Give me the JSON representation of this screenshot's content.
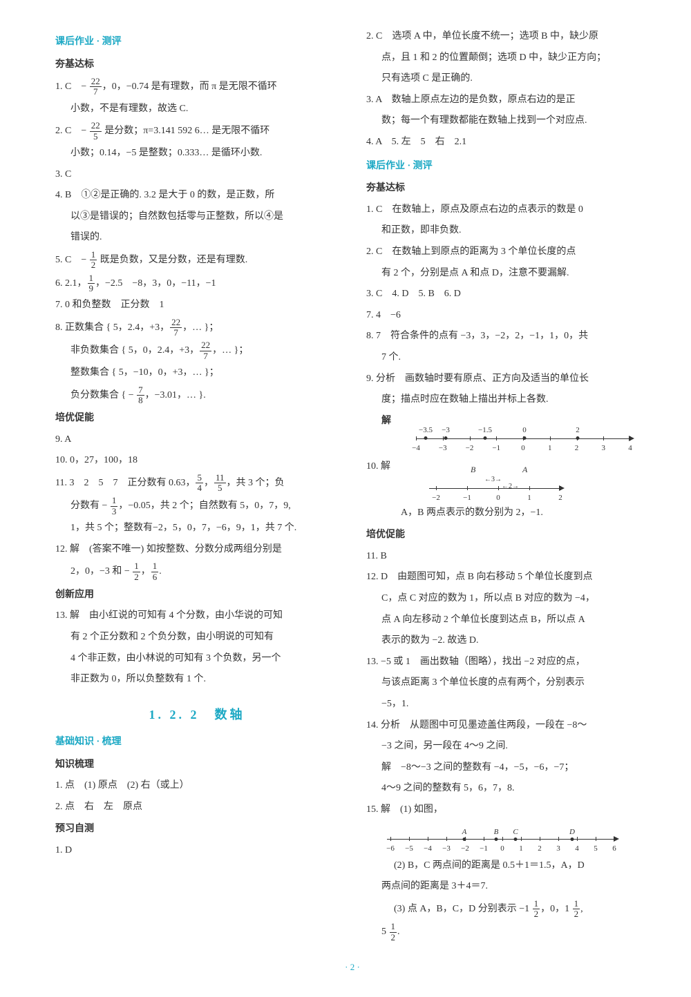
{
  "left": {
    "hdr_hw": "课后作业 · 测评",
    "sub_basic": "夯基达标",
    "q1": "1. C　− <frac>22|7</frac>，0，−0.74 是有理数，而 π 是无限不循环",
    "q1b": "小数，不是有理数，故选 C.",
    "q2": "2. C　− <frac>22|5</frac> 是分数；π=3.141 592 6… 是无限不循环",
    "q2b": "小数；0.14，−5 是整数；0.333… 是循环小数.",
    "q3": "3. C",
    "q4": "4. B　①②是正确的. 3.2 是大于 0 的数，是正数，所",
    "q4b": "以③是错误的；自然数包括零与正整数，所以④是",
    "q4c": "错误的.",
    "q5": "5. C　− <frac>1|2</frac> 既是负数，又是分数，还是有理数.",
    "q6": "6. 2.1，<frac>1|9</frac>，−2.5　−8，3，0，−11，−1",
    "q7": "7. 0 和负整数　正分数　1",
    "q8": "8. 正数集合 { 5，2.4，+3，<frac>22|7</frac>，… }；",
    "q8b": "非负数集合 { 5，0，2.4，+3，<frac>22|7</frac>，… }；",
    "q8c": "整数集合 { 5，−10，0，+3，… }；",
    "q8d": "负分数集合 { − <frac>7|8</frac>，−3.01，… }.",
    "sub_adv": "培优促能",
    "q9": "9. A",
    "q10": "10. 0，27，100，18",
    "q11": "11. 3　2　5　7　正分数有 0.63，<frac>5|4</frac>，<frac>11|5</frac>，共 3 个；负",
    "q11b": "分数有 − <frac>1|3</frac>，−0.05，共 2 个；自然数有 5，0，7，9,",
    "q11c": "1，共 5 个；整数有−2，5，0，7，−6，9，1，共 7 个.",
    "q12": "12. 解　(答案不唯一) 如按整数、分数分成两组分别是",
    "q12b": "2，0，−3 和 − <frac>1|2</frac>，<frac>1|6</frac>.",
    "sub_innov": "创新应用",
    "q13": "13. 解　由小红说的可知有 4 个分数，由小华说的可知",
    "q13b": "有 2 个正分数和 2 个负分数，由小明说的可知有",
    "q13c": "4 个非正数，由小林说的可知有 3 个负数，另一个",
    "q13d": "非正数为 0，所以负整数有 1 个.",
    "title_122": "1. 2. 2　数轴",
    "hdr_basic": "基础知识 · 梳理",
    "sub_review": "知识梳理",
    "r1": "1. 点　(1) 原点　(2) 右（或上）",
    "r2": "2. 点　右　左　原点",
    "sub_preview": "预习自测",
    "p1": "1. D"
  },
  "right": {
    "q2": "2. C　选项 A 中，单位长度不统一；选项 B 中，缺少原",
    "q2b": "点，且 1 和 2 的位置颠倒；选项 D 中，缺少正方向；",
    "q2c": "只有选项 C 是正确的.",
    "q3": "3. A　数轴上原点左边的是负数，原点右边的是正",
    "q3b": "数；每一个有理数都能在数轴上找到一个对应点.",
    "q45": "4. A　5. 左　5　右　2.1",
    "hdr_hw": "课后作业 · 测评",
    "sub_basic": "夯基达标",
    "q1": "1. C　在数轴上，原点及原点右边的点表示的数是 0",
    "q1b": "和正数，即非负数.",
    "rq2": "2. C　在数轴上到原点的距离为 3 个单位长度的点",
    "rq2b": "有 2 个，分别是点 A 和点 D，注意不要漏解.",
    "rq3": "3. C　4. D　5. B　6. D",
    "rq7": "7. 4　−6",
    "rq8": "8. 7　符合条件的点有 −3，3，−2，2，−1，1，0，共",
    "rq8b": "7 个.",
    "rq9": "9. 分析　画数轴时要有原点、正方向及适当的单位长",
    "rq9b": "度；描点时应在数轴上描出并标上各数.",
    "rq9_sol": "解",
    "nl1_above": [
      "−3.5",
      "−3",
      "−1.5",
      "0",
      "2"
    ],
    "nl1_above_x": [
      14,
      43,
      100,
      157,
      234
    ],
    "nl1_dots_x": [
      14,
      43,
      100,
      157,
      234
    ],
    "nl1_below": [
      "−4",
      "−3",
      "−2",
      "−1",
      "0",
      "1",
      "2",
      "3",
      "4"
    ],
    "rq10": "10. 解",
    "nl2_B": "B",
    "nl2_A": "A",
    "nl2_3": "3",
    "nl2_2": "2",
    "nl2_below": [
      "−2",
      "−1",
      "0",
      "1",
      "2"
    ],
    "rq10b": "A，B 两点表示的数分别为 2，−1.",
    "sub_adv": "培优促能",
    "rq11": "11. B",
    "rq12": "12. D　由题图可知，点 B 向右移动 5 个单位长度到点",
    "rq12b": "C，点 C 对应的数为 1，所以点 B 对应的数为 −4，",
    "rq12c": "点 A 向左移动 2 个单位长度到达点 B，所以点 A",
    "rq12d": "表示的数为 −2. 故选 D.",
    "rq13": "13. −5 或 1　画出数轴（图略），找出 −2 对应的点，",
    "rq13b": "与该点距离 3 个单位长度的点有两个，分别表示",
    "rq13c": "−5，1.",
    "rq14": "14. 分析　从题图中可见墨迹盖住两段，一段在 −8～",
    "rq14b": "−3 之间，另一段在 4～9 之间.",
    "rq14c": "解　−8～−3 之间的整数有 −4，−5，−6，−7；",
    "rq14d": "4～9 之间的整数有 5，6，7，8.",
    "rq15": "15. 解　(1) 如图，",
    "nl3_above": [
      "A",
      "B",
      "C",
      "D"
    ],
    "nl3_above_x": [
      112,
      158,
      186,
      268
    ],
    "nl3_dots_x": [
      112,
      158,
      186,
      268
    ],
    "nl3_below": [
      "−6",
      "−5",
      "−4",
      "−3",
      "−2",
      "−1",
      "0",
      "1",
      "2",
      "3",
      "4",
      "5",
      "6"
    ],
    "rq15b": "(2) B，C 两点间的距离是 0.5＋1＝1.5，A，D",
    "rq15c": "两点间的距离是 3＋4＝7.",
    "rq15d": "(3) 点 A，B，C，D 分别表示 −1 <frac>1|2</frac>，0，1 <frac>1|2</frac>,",
    "rq15e": "5 <frac>1|2</frac>."
  },
  "page_num": "· 2 ·"
}
